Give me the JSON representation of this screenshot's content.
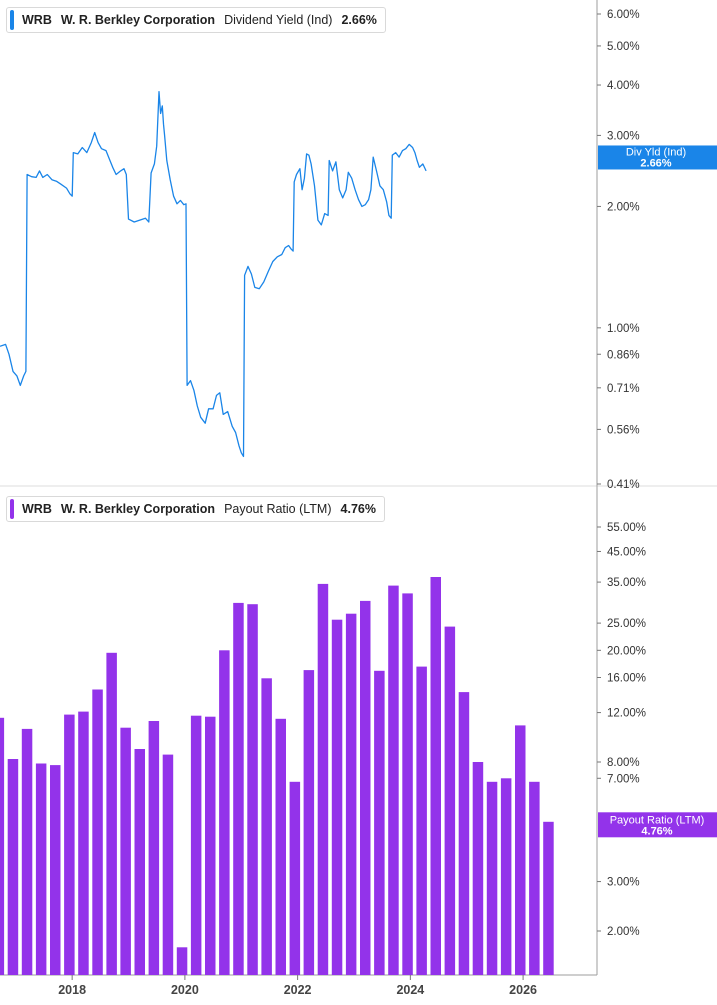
{
  "panels": [
    {
      "ticker": "WRB",
      "company": "W. R. Berkley Corporation",
      "metric": "Dividend Yield (Ind)",
      "value": "2.66%",
      "color": "#1a85e8",
      "flag_label": "Div Yld (Ind)",
      "flag_value": "2.66%"
    },
    {
      "ticker": "WRB",
      "company": "W. R. Berkley Corporation",
      "metric": "Payout Ratio (LTM)",
      "value": "4.76%",
      "color": "#9333ea",
      "flag_label": "Payout Ratio (LTM)",
      "flag_value": "4.76%"
    }
  ],
  "chart_data": [
    {
      "type": "line",
      "scale": "log",
      "ylim": [
        0.39,
        6.5
      ],
      "y_ticks": [
        {
          "v": 6.0,
          "label": "6.00%"
        },
        {
          "v": 5.0,
          "label": "5.00%"
        },
        {
          "v": 4.0,
          "label": "4.00%"
        },
        {
          "v": 3.0,
          "label": "3.00%"
        },
        {
          "v": 2.0,
          "label": "2.00%"
        },
        {
          "v": 1.0,
          "label": "1.00%"
        },
        {
          "v": 0.86,
          "label": "0.86%"
        },
        {
          "v": 0.71,
          "label": "0.71%"
        },
        {
          "v": 0.56,
          "label": "0.56%"
        },
        {
          "v": 0.41,
          "label": "0.41%"
        }
      ],
      "series": [
        {
          "values": [
            [
              2016.72,
              0.9
            ],
            [
              2016.82,
              0.91
            ],
            [
              2016.88,
              0.86
            ],
            [
              2016.95,
              0.78
            ],
            [
              2017.02,
              0.76
            ],
            [
              2017.08,
              0.72
            ],
            [
              2017.14,
              0.76
            ],
            [
              2017.18,
              0.78
            ],
            [
              2017.2,
              2.4
            ],
            [
              2017.28,
              2.37
            ],
            [
              2017.36,
              2.36
            ],
            [
              2017.42,
              2.45
            ],
            [
              2017.48,
              2.36
            ],
            [
              2017.56,
              2.4
            ],
            [
              2017.64,
              2.33
            ],
            [
              2017.72,
              2.31
            ],
            [
              2017.8,
              2.27
            ],
            [
              2017.9,
              2.22
            ],
            [
              2017.96,
              2.15
            ],
            [
              2018.0,
              2.12
            ],
            [
              2018.02,
              2.72
            ],
            [
              2018.1,
              2.7
            ],
            [
              2018.18,
              2.8
            ],
            [
              2018.26,
              2.72
            ],
            [
              2018.34,
              2.88
            ],
            [
              2018.4,
              3.05
            ],
            [
              2018.46,
              2.88
            ],
            [
              2018.52,
              2.78
            ],
            [
              2018.6,
              2.75
            ],
            [
              2018.66,
              2.62
            ],
            [
              2018.72,
              2.5
            ],
            [
              2018.78,
              2.4
            ],
            [
              2018.86,
              2.45
            ],
            [
              2018.92,
              2.48
            ],
            [
              2018.96,
              2.4
            ],
            [
              2019.0,
              1.86
            ],
            [
              2019.1,
              1.83
            ],
            [
              2019.2,
              1.85
            ],
            [
              2019.3,
              1.87
            ],
            [
              2019.36,
              1.83
            ],
            [
              2019.4,
              2.42
            ],
            [
              2019.46,
              2.55
            ],
            [
              2019.5,
              2.82
            ],
            [
              2019.54,
              3.85
            ],
            [
              2019.57,
              3.4
            ],
            [
              2019.6,
              3.55
            ],
            [
              2019.62,
              3.2
            ],
            [
              2019.64,
              3.0
            ],
            [
              2019.68,
              2.6
            ],
            [
              2019.74,
              2.33
            ],
            [
              2019.8,
              2.12
            ],
            [
              2019.86,
              2.03
            ],
            [
              2019.92,
              2.07
            ],
            [
              2019.98,
              2.02
            ],
            [
              2020.02,
              2.03
            ],
            [
              2020.04,
              0.72
            ],
            [
              2020.1,
              0.74
            ],
            [
              2020.16,
              0.7
            ],
            [
              2020.22,
              0.64
            ],
            [
              2020.28,
              0.6
            ],
            [
              2020.36,
              0.58
            ],
            [
              2020.42,
              0.63
            ],
            [
              2020.5,
              0.63
            ],
            [
              2020.56,
              0.68
            ],
            [
              2020.62,
              0.69
            ],
            [
              2020.68,
              0.61
            ],
            [
              2020.76,
              0.62
            ],
            [
              2020.84,
              0.57
            ],
            [
              2020.9,
              0.55
            ],
            [
              2020.96,
              0.51
            ],
            [
              2021.0,
              0.49
            ],
            [
              2021.04,
              0.48
            ],
            [
              2021.06,
              1.35
            ],
            [
              2021.12,
              1.42
            ],
            [
              2021.18,
              1.36
            ],
            [
              2021.24,
              1.26
            ],
            [
              2021.32,
              1.25
            ],
            [
              2021.4,
              1.3
            ],
            [
              2021.48,
              1.38
            ],
            [
              2021.56,
              1.46
            ],
            [
              2021.64,
              1.5
            ],
            [
              2021.72,
              1.52
            ],
            [
              2021.78,
              1.58
            ],
            [
              2021.84,
              1.6
            ],
            [
              2021.88,
              1.57
            ],
            [
              2021.92,
              1.55
            ],
            [
              2021.94,
              2.3
            ],
            [
              2021.98,
              2.4
            ],
            [
              2022.04,
              2.48
            ],
            [
              2022.08,
              2.2
            ],
            [
              2022.12,
              2.35
            ],
            [
              2022.16,
              2.7
            ],
            [
              2022.2,
              2.68
            ],
            [
              2022.24,
              2.55
            ],
            [
              2022.3,
              2.25
            ],
            [
              2022.36,
              1.85
            ],
            [
              2022.42,
              1.8
            ],
            [
              2022.48,
              1.92
            ],
            [
              2022.54,
              1.9
            ],
            [
              2022.56,
              2.6
            ],
            [
              2022.62,
              2.45
            ],
            [
              2022.68,
              2.58
            ],
            [
              2022.74,
              2.2
            ],
            [
              2022.8,
              2.1
            ],
            [
              2022.86,
              2.2
            ],
            [
              2022.9,
              2.43
            ],
            [
              2022.96,
              2.35
            ],
            [
              2023.02,
              2.2
            ],
            [
              2023.08,
              2.08
            ],
            [
              2023.14,
              2.0
            ],
            [
              2023.2,
              2.02
            ],
            [
              2023.26,
              2.08
            ],
            [
              2023.3,
              2.2
            ],
            [
              2023.34,
              2.65
            ],
            [
              2023.4,
              2.45
            ],
            [
              2023.46,
              2.25
            ],
            [
              2023.52,
              2.2
            ],
            [
              2023.58,
              2.05
            ],
            [
              2023.62,
              1.9
            ],
            [
              2023.66,
              1.87
            ],
            [
              2023.68,
              2.68
            ],
            [
              2023.74,
              2.72
            ],
            [
              2023.8,
              2.65
            ],
            [
              2023.86,
              2.75
            ],
            [
              2023.92,
              2.78
            ],
            [
              2023.98,
              2.85
            ],
            [
              2024.04,
              2.8
            ],
            [
              2024.08,
              2.72
            ],
            [
              2024.12,
              2.6
            ],
            [
              2024.16,
              2.5
            ],
            [
              2024.22,
              2.55
            ],
            [
              2024.28,
              2.45
            ]
          ]
        }
      ]
    },
    {
      "type": "bar",
      "scale": "log",
      "ylim": [
        1.45,
        75
      ],
      "y_ticks": [
        {
          "v": 55,
          "label": "55.00%"
        },
        {
          "v": 45,
          "label": "45.00%"
        },
        {
          "v": 35,
          "label": "35.00%"
        },
        {
          "v": 25,
          "label": "25.00%"
        },
        {
          "v": 20,
          "label": "20.00%"
        },
        {
          "v": 16,
          "label": "16.00%"
        },
        {
          "v": 12,
          "label": "12.00%"
        },
        {
          "v": 8,
          "label": "8.00%"
        },
        {
          "v": 7,
          "label": "7.00%"
        },
        {
          "v": 3,
          "label": "3.00%"
        },
        {
          "v": 2,
          "label": "2.00%"
        }
      ],
      "series": [
        {
          "values": [
            [
              2016.7,
              11.5
            ],
            [
              2016.95,
              8.2
            ],
            [
              2017.2,
              10.5
            ],
            [
              2017.45,
              7.9
            ],
            [
              2017.7,
              7.8
            ],
            [
              2017.95,
              11.8
            ],
            [
              2018.2,
              12.1
            ],
            [
              2018.45,
              14.5
            ],
            [
              2018.7,
              19.6
            ],
            [
              2018.95,
              10.6
            ],
            [
              2019.2,
              8.9
            ],
            [
              2019.45,
              11.2
            ],
            [
              2019.7,
              8.5
            ],
            [
              2019.95,
              1.75
            ],
            [
              2020.2,
              11.7
            ],
            [
              2020.45,
              11.6
            ],
            [
              2020.7,
              20.0
            ],
            [
              2020.95,
              29.5
            ],
            [
              2021.2,
              29.2
            ],
            [
              2021.45,
              15.9
            ],
            [
              2021.7,
              11.4
            ],
            [
              2021.95,
              6.8
            ],
            [
              2022.2,
              17.0
            ],
            [
              2022.45,
              34.5
            ],
            [
              2022.7,
              25.7
            ],
            [
              2022.95,
              27.0
            ],
            [
              2023.2,
              30.0
            ],
            [
              2023.45,
              16.9
            ],
            [
              2023.7,
              34.0
            ],
            [
              2023.95,
              31.9
            ],
            [
              2024.2,
              17.5
            ],
            [
              2024.45,
              36.5
            ],
            [
              2024.7,
              24.3
            ],
            [
              2024.95,
              14.2
            ],
            [
              2025.2,
              8.0
            ],
            [
              2025.45,
              6.8
            ],
            [
              2025.7,
              7.0
            ],
            [
              2025.95,
              10.8
            ],
            [
              2026.2,
              6.8
            ],
            [
              2026.45,
              4.9
            ],
            [
              2026.7,
              4.76
            ]
          ]
        }
      ]
    }
  ],
  "x_axis": {
    "ticks": [
      {
        "v": 2018,
        "label": "2018"
      },
      {
        "v": 2020,
        "label": "2020"
      },
      {
        "v": 2022,
        "label": "2022"
      },
      {
        "v": 2024,
        "label": "2024"
      },
      {
        "v": 2026,
        "label": "2026"
      }
    ]
  }
}
